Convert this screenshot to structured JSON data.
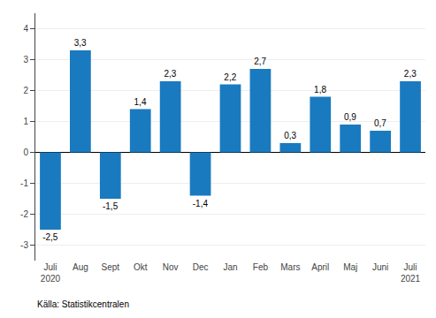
{
  "chart_data": {
    "type": "bar",
    "categories": [
      "Juli\n2020",
      "Aug",
      "Sept",
      "Okt",
      "Nov",
      "Dec",
      "Jan",
      "Feb",
      "Mars",
      "April",
      "Maj",
      "Juni",
      "Juli\n2021"
    ],
    "values": [
      -2.5,
      3.3,
      -1.5,
      1.4,
      2.3,
      -1.4,
      2.2,
      2.7,
      0.3,
      1.8,
      0.9,
      0.7,
      2.3
    ],
    "value_labels": [
      "-2,5",
      "3,3",
      "-1,5",
      "1,4",
      "2,3",
      "-1,4",
      "2,2",
      "2,7",
      "0,3",
      "1,8",
      "0,9",
      "0,7",
      "2,3"
    ],
    "data_labels": true,
    "color": "#1a7abf",
    "ylim": [
      -3.5,
      4.5
    ],
    "yticks": [
      -3,
      -2,
      -1,
      0,
      1,
      2,
      3,
      4
    ],
    "grid": true,
    "annotations": [
      "Källa: Statistikcentralen"
    ]
  }
}
